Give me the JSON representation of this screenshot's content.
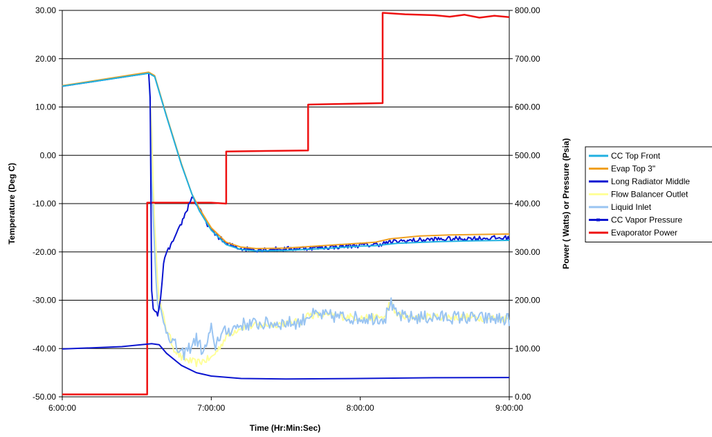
{
  "chart_data": {
    "type": "line",
    "xlabel": "Time (Hr:Min:Sec)",
    "ylabel_left": "Temperature (Deg C)",
    "ylabel_right": "Power ( Watts) or Pressure (Psia)",
    "x_unit": "hours",
    "xlim": [
      6,
      9
    ],
    "x_ticks": [
      "6:00:00",
      "7:00:00",
      "8:00:00",
      "9:00:00"
    ],
    "ylim_left": [
      -50,
      30
    ],
    "y_ticks_left": [
      "30.00",
      "20.00",
      "10.00",
      "0.00",
      "-10.00",
      "-20.00",
      "-30.00",
      "-40.00",
      "-50.00"
    ],
    "ylim_right": [
      0,
      800
    ],
    "y_ticks_right": [
      "800.00",
      "700.00",
      "600.00",
      "500.00",
      "400.00",
      "300.00",
      "200.00",
      "100.00",
      "0.00"
    ],
    "grid": "horizontal",
    "legend_position": "right",
    "series": [
      {
        "name": "CC Top Front",
        "axis": "left",
        "color": "#20B0E0",
        "noise": 0,
        "points": [
          [
            6.0,
            14.3
          ],
          [
            6.58,
            17.0
          ],
          [
            6.62,
            16.3
          ],
          [
            6.7,
            8.0
          ],
          [
            6.8,
            -2.0
          ],
          [
            6.87,
            -8.0
          ],
          [
            6.92,
            -11.5
          ],
          [
            7.0,
            -15.5
          ],
          [
            7.1,
            -18.5
          ],
          [
            7.2,
            -19.5
          ],
          [
            7.3,
            -19.8
          ],
          [
            7.5,
            -19.7
          ],
          [
            7.8,
            -19.2
          ],
          [
            8.0,
            -18.8
          ],
          [
            8.1,
            -18.7
          ],
          [
            8.25,
            -18.2
          ],
          [
            8.5,
            -17.9
          ],
          [
            8.75,
            -17.7
          ],
          [
            9.0,
            -17.6
          ]
        ]
      },
      {
        "name": "Evap Top 3\"",
        "axis": "left",
        "color": "#F0A020",
        "noise": 0,
        "points": [
          [
            6.0,
            14.4
          ],
          [
            6.58,
            17.2
          ],
          [
            6.62,
            16.5
          ],
          [
            6.7,
            8.2
          ],
          [
            6.8,
            -1.8
          ],
          [
            6.87,
            -8.0
          ],
          [
            6.92,
            -11.0
          ],
          [
            7.0,
            -15.0
          ],
          [
            7.1,
            -18.0
          ],
          [
            7.2,
            -19.0
          ],
          [
            7.3,
            -19.3
          ],
          [
            7.5,
            -19.2
          ],
          [
            7.8,
            -18.6
          ],
          [
            8.0,
            -18.2
          ],
          [
            8.1,
            -18.0
          ],
          [
            8.2,
            -17.3
          ],
          [
            8.4,
            -16.7
          ],
          [
            8.6,
            -16.5
          ],
          [
            9.0,
            -16.3
          ]
        ]
      },
      {
        "name": "Long Radiator Middle",
        "axis": "left",
        "color": "#0A14D0",
        "noise": 0.5,
        "points": [
          [
            6.0,
            14.3
          ],
          [
            6.58,
            17.0
          ],
          [
            6.59,
            12.0
          ],
          [
            6.6,
            -28.0
          ],
          [
            6.61,
            -32.0
          ],
          [
            6.64,
            -33.0
          ],
          [
            6.66,
            -30.0
          ],
          [
            6.68,
            -22.0
          ],
          [
            6.72,
            -19.0
          ],
          [
            6.76,
            -17.0
          ],
          [
            6.8,
            -14.0
          ],
          [
            6.84,
            -11.0
          ],
          [
            6.87,
            -8.5
          ],
          [
            6.9,
            -10.0
          ],
          [
            6.95,
            -13.0
          ],
          [
            7.0,
            -15.5
          ],
          [
            7.1,
            -18.3
          ],
          [
            7.2,
            -19.3
          ],
          [
            7.3,
            -19.5
          ],
          [
            7.5,
            -19.4
          ],
          [
            7.8,
            -19.0
          ],
          [
            8.0,
            -18.6
          ],
          [
            8.1,
            -18.5
          ],
          [
            8.25,
            -17.8
          ],
          [
            8.5,
            -17.4
          ],
          [
            8.75,
            -17.2
          ],
          [
            9.0,
            -17.1
          ]
        ]
      },
      {
        "name": "Flow Balancer Outlet",
        "axis": "left",
        "color": "#FFFF99",
        "noise": 0.8,
        "points": [
          [
            6.0,
            14.3
          ],
          [
            6.58,
            17.0
          ],
          [
            6.6,
            5.0
          ],
          [
            6.62,
            -15.0
          ],
          [
            6.65,
            -30.0
          ],
          [
            6.7,
            -36.0
          ],
          [
            6.75,
            -40.0
          ],
          [
            6.8,
            -42.0
          ],
          [
            6.9,
            -43.0
          ],
          [
            7.0,
            -42.0
          ],
          [
            7.05,
            -40.0
          ],
          [
            7.1,
            -37.5
          ],
          [
            7.2,
            -35.5
          ],
          [
            7.4,
            -35.0
          ],
          [
            7.6,
            -34.5
          ],
          [
            7.65,
            -33.0
          ],
          [
            7.8,
            -33.2
          ],
          [
            8.0,
            -33.6
          ],
          [
            8.17,
            -33.5
          ],
          [
            8.2,
            -30.0
          ],
          [
            8.23,
            -32.5
          ],
          [
            8.3,
            -33.5
          ],
          [
            8.6,
            -33.4
          ],
          [
            9.0,
            -33.8
          ]
        ]
      },
      {
        "name": "Liquid Inlet",
        "axis": "left",
        "color": "#99C4F2",
        "noise": 1.4,
        "points": [
          [
            6.0,
            14.3
          ],
          [
            6.58,
            17.0
          ],
          [
            6.59,
            10.0
          ],
          [
            6.6,
            -5.0
          ],
          [
            6.62,
            -20.0
          ],
          [
            6.64,
            -30.0
          ],
          [
            6.68,
            -35.0
          ],
          [
            6.75,
            -39.0
          ],
          [
            6.8,
            -41.5
          ],
          [
            6.85,
            -40.0
          ],
          [
            6.9,
            -38.0
          ],
          [
            6.95,
            -41.0
          ],
          [
            7.0,
            -36.0
          ],
          [
            7.02,
            -40.0
          ],
          [
            7.05,
            -37.5
          ],
          [
            7.1,
            -36.5
          ],
          [
            7.2,
            -35.0
          ],
          [
            7.4,
            -34.8
          ],
          [
            7.6,
            -34.6
          ],
          [
            7.65,
            -33.0
          ],
          [
            7.8,
            -33.3
          ],
          [
            8.0,
            -33.7
          ],
          [
            8.17,
            -33.6
          ],
          [
            8.2,
            -30.2
          ],
          [
            8.23,
            -32.8
          ],
          [
            8.3,
            -33.6
          ],
          [
            8.6,
            -33.5
          ],
          [
            9.0,
            -34.0
          ]
        ]
      },
      {
        "name": "CC Vapor Pressure",
        "axis": "right",
        "color": "#0A14D0",
        "noise": 0,
        "points": [
          [
            6.0,
            99
          ],
          [
            6.4,
            104
          ],
          [
            6.6,
            110
          ],
          [
            6.65,
            108
          ],
          [
            6.7,
            90
          ],
          [
            6.8,
            65
          ],
          [
            6.9,
            50
          ],
          [
            7.0,
            43
          ],
          [
            7.2,
            38
          ],
          [
            7.5,
            37
          ],
          [
            8.0,
            38
          ],
          [
            8.5,
            39.5
          ],
          [
            9.0,
            40
          ]
        ]
      },
      {
        "name": "Evaporator Power",
        "axis": "right",
        "color": "#EE1111",
        "noise": 0,
        "points": [
          [
            6.0,
            5
          ],
          [
            6.57,
            5
          ],
          [
            6.57,
            402
          ],
          [
            7.0,
            402
          ],
          [
            7.1,
            400
          ],
          [
            7.1,
            508
          ],
          [
            7.65,
            510
          ],
          [
            7.65,
            605
          ],
          [
            8.15,
            608
          ],
          [
            8.15,
            795
          ],
          [
            8.3,
            792
          ],
          [
            8.5,
            790
          ],
          [
            8.6,
            787
          ],
          [
            8.7,
            791
          ],
          [
            8.8,
            785
          ],
          [
            8.9,
            789
          ],
          [
            9.0,
            786
          ]
        ]
      }
    ]
  }
}
